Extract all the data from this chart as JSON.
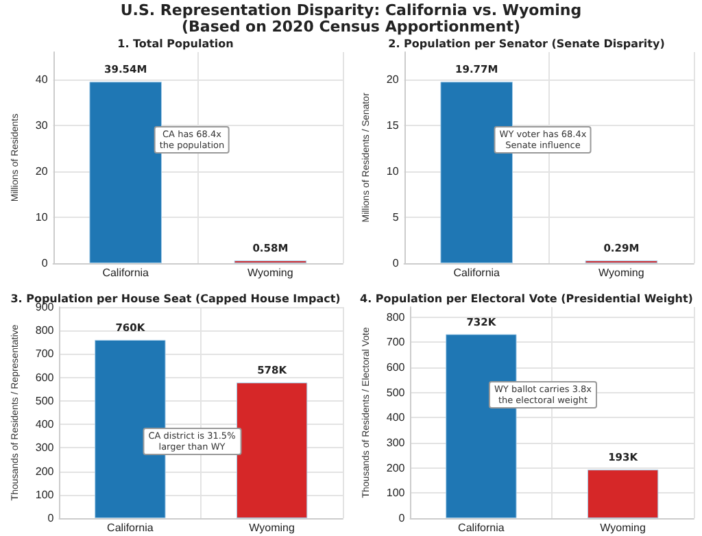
{
  "chart_data": [
    {
      "type": "bar",
      "title": "1. Total Population",
      "ylabel": "Millions of Residents",
      "categories": [
        "California",
        "Wyoming"
      ],
      "values": [
        39.54,
        0.58
      ],
      "colors": [
        "#1f77b4",
        "#d62728"
      ],
      "value_labels": [
        "39.54M",
        "0.58M"
      ],
      "ylim": [
        0,
        46
      ],
      "yticks": [
        0,
        10,
        20,
        30,
        40
      ],
      "grid": true,
      "annotations": [
        "U.S. Representation Disparity: California vs. Wyoming\n(Based on 2020 Census Apportionment)",
        "CA has 68.4x\nthe population"
      ]
    },
    {
      "type": "bar",
      "title": "2. Population per Senator (Senate Disparity)",
      "ylabel": "Millions of Residents / Senator",
      "categories": [
        "California",
        "Wyoming"
      ],
      "values": [
        19.77,
        0.29
      ],
      "colors": [
        "#1f77b4",
        "#d62728"
      ],
      "value_labels": [
        "19.77M",
        "0.29M"
      ],
      "ylim": [
        0,
        23
      ],
      "yticks": [
        0,
        5,
        10,
        15,
        20
      ],
      "grid": true,
      "annotations": [
        "WY voter has 68.4x\nSenate influence"
      ]
    },
    {
      "type": "bar",
      "title": "3. Population per House Seat (Capped House Impact)",
      "ylabel": "Thousands of Residents / Representative",
      "categories": [
        "California",
        "Wyoming"
      ],
      "values": [
        760,
        578
      ],
      "colors": [
        "#1f77b4",
        "#d62728"
      ],
      "value_labels": [
        "760K",
        "578K"
      ],
      "ylim": [
        0,
        900
      ],
      "yticks": [
        0,
        100,
        200,
        300,
        400,
        500,
        600,
        700,
        800,
        900
      ],
      "grid": true,
      "annotations": [
        "CA district is 31.5%\nlarger than WY"
      ]
    },
    {
      "type": "bar",
      "title": "4. Population per Electoral Vote (Presidential Weight)",
      "ylabel": "Thousands of Residents / Electoral Vote",
      "categories": [
        "California",
        "Wyoming"
      ],
      "values": [
        732,
        193
      ],
      "colors": [
        "#1f77b4",
        "#d62728"
      ],
      "value_labels": [
        "732K",
        "193K"
      ],
      "ylim": [
        0,
        840
      ],
      "yticks": [
        0,
        100,
        200,
        300,
        400,
        500,
        600,
        700,
        800
      ],
      "grid": true,
      "annotations": [
        "WY ballot carries 3.8x\nthe electoral weight"
      ]
    }
  ]
}
